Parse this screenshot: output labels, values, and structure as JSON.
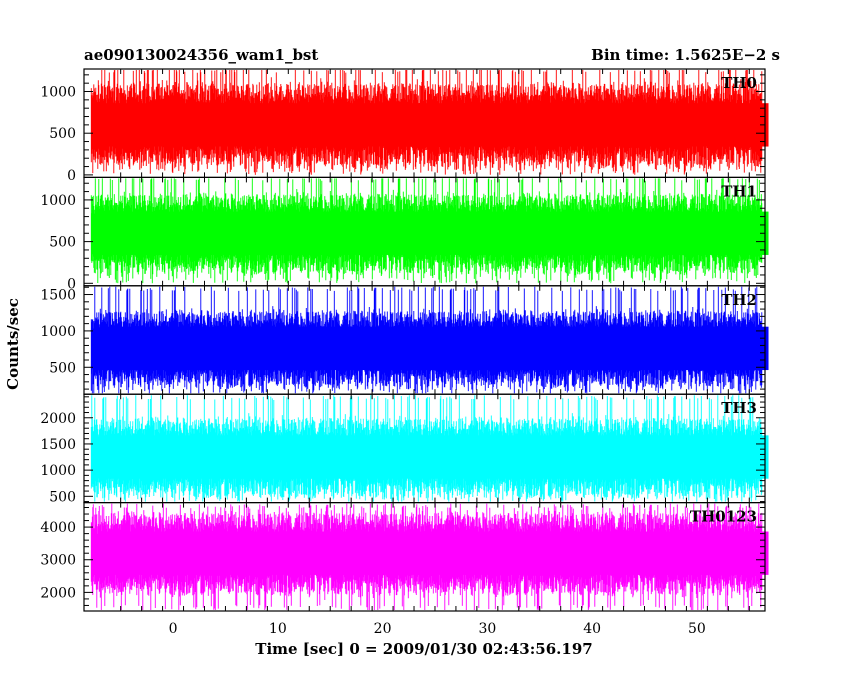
{
  "chart_data": {
    "type": "line",
    "title_left": "ae090130024356_wam1_bst",
    "title_right": "Bin time: 1.5625E−2 s",
    "xlabel": "Time [sec] 0 = 2009/01/30 02:43:56.197",
    "ylabel": "Counts/sec",
    "xlim": [
      -8.5,
      56.5
    ],
    "data_range": [
      -7.8,
      56.2
    ],
    "x_ticks": [
      0,
      10,
      20,
      30,
      40,
      50
    ],
    "x_tick_labels": [
      "0",
      "10",
      "20",
      "30",
      "40",
      "50"
    ],
    "panels": [
      {
        "name": "TH0",
        "color": "#ff0000",
        "ylim": [
          -30,
          1270
        ],
        "y_ticks": [
          0,
          500,
          1000
        ],
        "y_tick_labels": [
          "0",
          "500",
          "1000"
        ],
        "mean": 600,
        "typical_range": [
          100,
          1100
        ],
        "extreme_range": [
          0,
          1300
        ]
      },
      {
        "name": "TH1",
        "color": "#00ff00",
        "ylim": [
          -30,
          1270
        ],
        "y_ticks": [
          0,
          500,
          1000
        ],
        "y_tick_labels": [
          "0",
          "500",
          "1000"
        ],
        "mean": 600,
        "typical_range": [
          100,
          1050
        ],
        "extreme_range": [
          0,
          1300
        ]
      },
      {
        "name": "TH2",
        "color": "#0000ff",
        "ylim": [
          130,
          1620
        ],
        "y_ticks": [
          500,
          1000,
          1500
        ],
        "y_tick_labels": [
          "500",
          "1000",
          "1500"
        ],
        "mean": 760,
        "typical_range": [
          260,
          1300
        ],
        "extreme_range": [
          130,
          1620
        ]
      },
      {
        "name": "TH3",
        "color": "#00ffff",
        "ylim": [
          380,
          2450
        ],
        "y_ticks": [
          500,
          1000,
          1500,
          2000
        ],
        "y_tick_labels": [
          "500",
          "1000",
          "1500",
          "2000"
        ],
        "mean": 1250,
        "typical_range": [
          600,
          2100
        ],
        "extreme_range": [
          380,
          2450
        ]
      },
      {
        "name": "TH0123",
        "color": "#ff00ff",
        "ylim": [
          1430,
          4750
        ],
        "y_ticks": [
          2000,
          3000,
          4000
        ],
        "y_tick_labels": [
          "2000",
          "3000",
          "4000"
        ],
        "mean": 3200,
        "typical_range": [
          1900,
          4400
        ],
        "extreme_range": [
          1430,
          4750
        ]
      }
    ],
    "grid": false,
    "legend": "none"
  }
}
